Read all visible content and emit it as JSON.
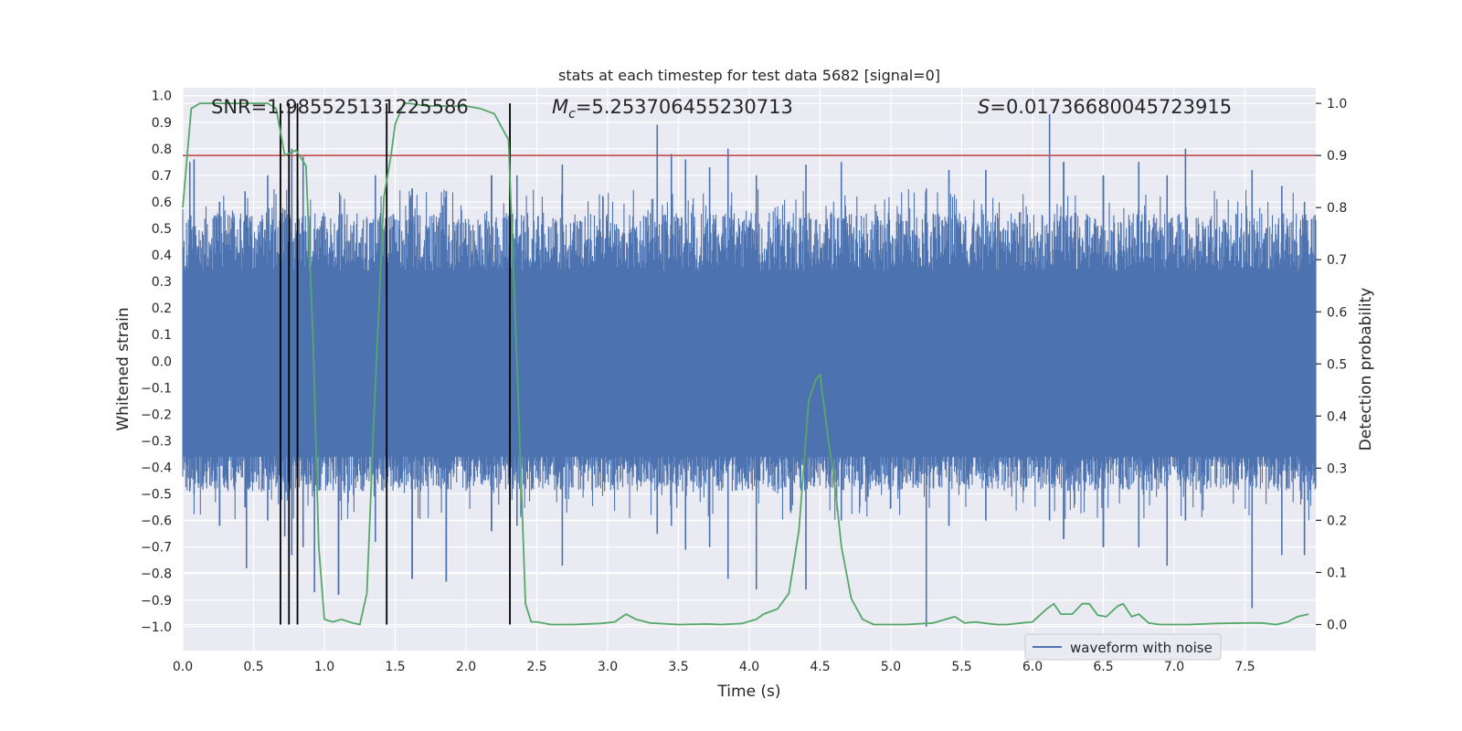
{
  "chart_data": {
    "type": "line",
    "title": "stats at each timestep for test data 5682 [signal=0]",
    "xlabel": "Time (s)",
    "ylabel_left": "Whitened strain",
    "ylabel_right": "Detection probability",
    "xlim": [
      0,
      8
    ],
    "ylim_left": [
      -1.09,
      1.03
    ],
    "ylim_right": [
      -0.05,
      1.03
    ],
    "x_ticks": [
      0.0,
      0.5,
      1.0,
      1.5,
      2.0,
      2.5,
      3.0,
      3.5,
      4.0,
      4.5,
      5.0,
      5.5,
      6.0,
      6.5,
      7.0,
      7.5
    ],
    "x_tick_labels": [
      "0.0",
      "0.5",
      "1.0",
      "1.5",
      "2.0",
      "2.5",
      "3.0",
      "3.5",
      "4.0",
      "4.5",
      "5.0",
      "5.5",
      "6.0",
      "6.5",
      "7.0",
      "7.5"
    ],
    "y_left_ticks": [
      -1.0,
      -0.9,
      -0.8,
      -0.7,
      -0.6,
      -0.5,
      -0.4,
      -0.3,
      -0.2,
      -0.1,
      0.0,
      0.1,
      0.2,
      0.3,
      0.4,
      0.5,
      0.6,
      0.7,
      0.8,
      0.9,
      1.0
    ],
    "y_left_tick_labels": [
      "−1.0",
      "−0.9",
      "−0.8",
      "−0.7",
      "−0.6",
      "−0.5",
      "−0.4",
      "−0.3",
      "−0.2",
      "−0.1",
      "0.0",
      "0.1",
      "0.2",
      "0.3",
      "0.4",
      "0.5",
      "0.6",
      "0.7",
      "0.8",
      "0.9",
      "1.0"
    ],
    "y_right_ticks": [
      0.0,
      0.1,
      0.2,
      0.3,
      0.4,
      0.5,
      0.6,
      0.7,
      0.8,
      0.9,
      1.0
    ],
    "y_right_tick_labels": [
      "0.0",
      "0.1",
      "0.2",
      "0.3",
      "0.4",
      "0.5",
      "0.6",
      "0.7",
      "0.8",
      "0.9",
      "1.0"
    ],
    "annotations": {
      "snr": "SNR=1.985525131225586",
      "mc": "=5.253706455230713",
      "s": "=0.01736680045723915",
      "mc_symbol": "M",
      "mc_sub": "c",
      "s_symbol": "S"
    },
    "threshold": {
      "value": 0.9,
      "axis": "right",
      "color": "#c44e52"
    },
    "detection_markers_x": [
      0.69,
      0.75,
      0.81,
      1.44,
      2.31
    ],
    "waveform": {
      "name": "waveform with noise",
      "color": "#4c72b0",
      "envelope_peaks": [
        [
          0.05,
          0.75,
          -0.49
        ],
        [
          0.08,
          0.76,
          -0.5
        ],
        [
          0.26,
          0.6,
          -0.62
        ],
        [
          0.44,
          0.64,
          -0.55
        ],
        [
          0.45,
          0.55,
          -0.78
        ],
        [
          0.6,
          0.7,
          -0.6
        ],
        [
          0.72,
          0.57,
          -0.66
        ],
        [
          0.77,
          0.8,
          -0.73
        ],
        [
          0.85,
          0.77,
          -0.7
        ],
        [
          0.93,
          0.5,
          -0.87
        ],
        [
          1.1,
          0.5,
          -0.88
        ],
        [
          1.36,
          0.7,
          -0.68
        ],
        [
          1.62,
          0.65,
          -0.82
        ],
        [
          1.86,
          0.64,
          -0.83
        ],
        [
          2.18,
          0.7,
          -0.64
        ],
        [
          2.36,
          0.7,
          -0.62
        ],
        [
          2.68,
          0.74,
          -0.77
        ],
        [
          3.35,
          0.89,
          -0.65
        ],
        [
          3.45,
          0.78,
          -0.62
        ],
        [
          3.55,
          0.76,
          -0.71
        ],
        [
          3.72,
          0.73,
          -0.7
        ],
        [
          3.85,
          0.8,
          -0.82
        ],
        [
          4.05,
          0.7,
          -0.86
        ],
        [
          4.4,
          0.74,
          -0.86
        ],
        [
          4.65,
          0.75,
          -0.6
        ],
        [
          5.25,
          0.65,
          -1.0
        ],
        [
          5.41,
          0.72,
          -0.62
        ],
        [
          5.67,
          0.72,
          -0.6
        ],
        [
          6.12,
          0.93,
          -0.6
        ],
        [
          6.22,
          0.75,
          -0.67
        ],
        [
          6.5,
          0.7,
          -0.7
        ],
        [
          6.75,
          0.75,
          -0.7
        ],
        [
          6.95,
          0.7,
          -0.77
        ],
        [
          7.08,
          0.8,
          -0.6
        ],
        [
          7.55,
          0.72,
          -0.93
        ],
        [
          7.76,
          0.66,
          -0.73
        ],
        [
          7.92,
          0.6,
          -0.73
        ]
      ]
    },
    "detection_probability": {
      "color": "#55a868",
      "x": [
        0.0,
        0.06,
        0.12,
        0.25,
        0.4,
        0.6,
        0.66,
        0.72,
        0.8,
        0.87,
        0.92,
        0.96,
        1.0,
        1.06,
        1.12,
        1.2,
        1.25,
        1.3,
        1.35,
        1.42,
        1.47,
        1.5,
        1.56,
        1.6,
        1.72,
        1.8,
        1.92,
        2.0,
        2.1,
        2.2,
        2.26,
        2.3,
        2.36,
        2.42,
        2.46,
        2.5,
        2.6,
        2.75,
        2.95,
        3.05,
        3.13,
        3.2,
        3.3,
        3.5,
        3.7,
        3.8,
        3.95,
        4.05,
        4.1,
        4.2,
        4.28,
        4.35,
        4.42,
        4.47,
        4.5,
        4.56,
        4.6,
        4.65,
        4.72,
        4.8,
        4.88,
        4.95,
        5.1,
        5.3,
        5.45,
        5.52,
        5.6,
        5.65,
        5.75,
        5.82,
        5.92,
        6.0,
        6.1,
        6.15,
        6.2,
        6.28,
        6.35,
        6.4,
        6.46,
        6.52,
        6.6,
        6.64,
        6.7,
        6.75,
        6.82,
        6.9,
        6.98,
        7.1,
        7.3,
        7.5,
        7.62,
        7.72,
        7.8,
        7.87,
        7.95
      ],
      "y": [
        0.8,
        0.99,
        1.0,
        1.0,
        1.0,
        1.0,
        0.99,
        0.9,
        0.91,
        0.88,
        0.55,
        0.15,
        0.01,
        0.005,
        0.01,
        0.003,
        0.0,
        0.06,
        0.4,
        0.82,
        0.9,
        0.96,
        1.0,
        1.0,
        0.995,
        0.995,
        0.995,
        0.995,
        0.99,
        0.98,
        0.95,
        0.93,
        0.5,
        0.04,
        0.005,
        0.005,
        0.0,
        0.0,
        0.002,
        0.005,
        0.02,
        0.01,
        0.003,
        0.0,
        0.001,
        0.0,
        0.002,
        0.01,
        0.02,
        0.03,
        0.06,
        0.18,
        0.43,
        0.47,
        0.48,
        0.35,
        0.28,
        0.15,
        0.05,
        0.01,
        0.0,
        0.0,
        0.0,
        0.003,
        0.015,
        0.003,
        0.005,
        0.003,
        0.0,
        0.0,
        0.003,
        0.005,
        0.03,
        0.04,
        0.02,
        0.02,
        0.04,
        0.04,
        0.018,
        0.015,
        0.035,
        0.04,
        0.015,
        0.02,
        0.003,
        0.0,
        0.0,
        0.0,
        0.002,
        0.003,
        0.003,
        0.0,
        0.005,
        0.015,
        0.02
      ]
    },
    "legend": {
      "label": "waveform with noise",
      "placement": "lower-right"
    }
  }
}
